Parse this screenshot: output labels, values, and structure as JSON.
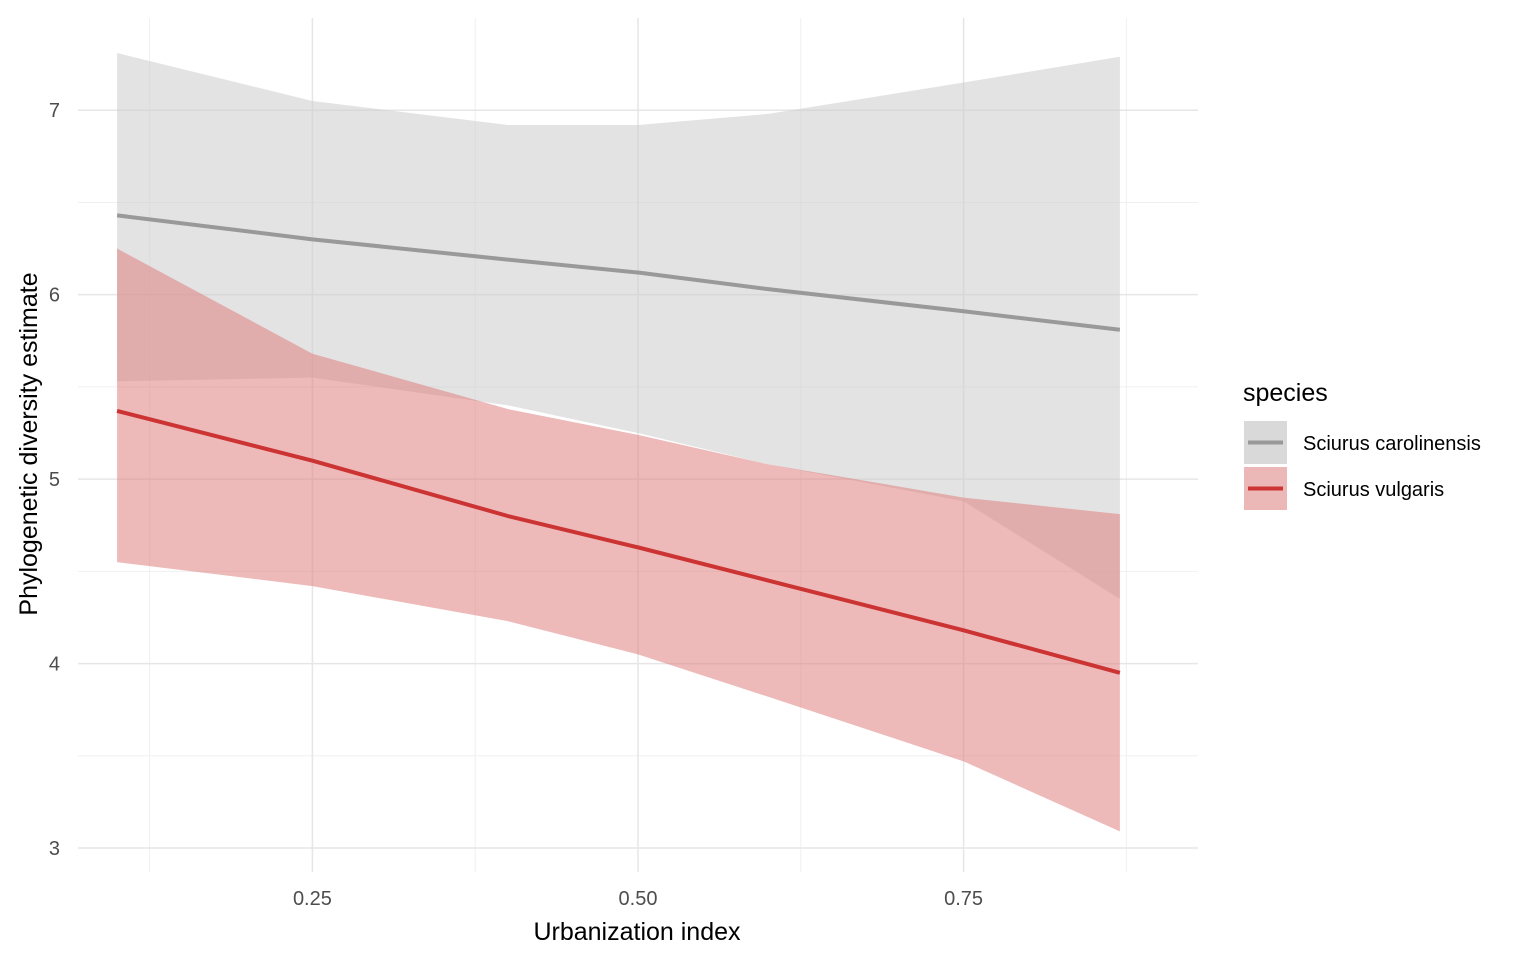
{
  "chart_data": {
    "type": "line",
    "title": "",
    "xlabel": "Urbanization index",
    "ylabel": "Phylogenetic diversity estimate",
    "xlim": [
      0.07,
      0.93
    ],
    "ylim": [
      2.87,
      7.5
    ],
    "x_ticks": [
      0.25,
      0.5,
      0.75
    ],
    "x_tick_labels": [
      "0.25",
      "0.50",
      "0.75"
    ],
    "x_minor_ticks": [
      0.125,
      0.375,
      0.625,
      0.875
    ],
    "y_ticks": [
      3,
      4,
      5,
      6,
      7
    ],
    "y_tick_labels": [
      "3",
      "4",
      "5",
      "6",
      "7"
    ],
    "y_minor_ticks": [
      3.5,
      4.5,
      5.5,
      6.5
    ],
    "grid": true,
    "legend": {
      "title": "species",
      "position": "right"
    },
    "series": [
      {
        "name": "Sciurus carolinensis",
        "color": "#999999",
        "ribbon_color": "#cccccc",
        "x": [
          0.1,
          0.25,
          0.4,
          0.5,
          0.6,
          0.75,
          0.87
        ],
        "y": [
          6.43,
          6.3,
          6.19,
          6.12,
          6.03,
          5.91,
          5.81
        ],
        "lower": [
          5.53,
          5.55,
          5.4,
          5.25,
          5.08,
          4.88,
          4.35
        ],
        "upper": [
          7.31,
          7.05,
          6.92,
          6.92,
          6.98,
          7.15,
          7.29
        ]
      },
      {
        "name": "Sciurus vulgaris",
        "color": "#cc3333",
        "ribbon_color": "#e08080",
        "x": [
          0.1,
          0.25,
          0.4,
          0.5,
          0.6,
          0.75,
          0.87
        ],
        "y": [
          5.37,
          5.1,
          4.8,
          4.63,
          4.45,
          4.18,
          3.95
        ],
        "lower": [
          4.55,
          4.42,
          4.23,
          4.05,
          3.82,
          3.47,
          3.09
        ],
        "upper": [
          6.25,
          5.68,
          5.38,
          5.24,
          5.08,
          4.9,
          4.81
        ]
      }
    ]
  }
}
